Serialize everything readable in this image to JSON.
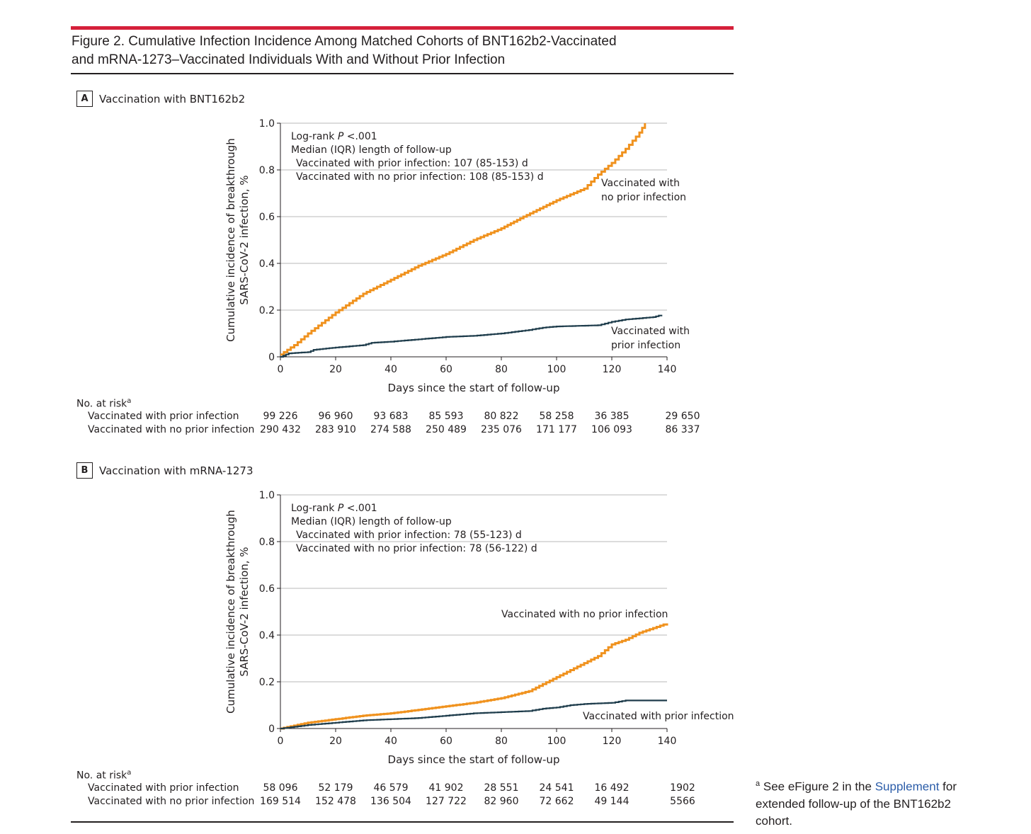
{
  "figure": {
    "title_line1": "Figure 2. Cumulative Infection Incidence Among Matched Cohorts of BNT162b2-Vaccinated",
    "title_line2": "and mRNA-1273–Vaccinated Individuals With and Without Prior Infection"
  },
  "footnote": {
    "marker": "a",
    "pre": "See eFigure 2 in the",
    "link": "Supplement",
    "post": "for extended follow-up of the BNT162b2 cohort."
  },
  "colors": {
    "no_prior": "#f0921e",
    "prior": "#1f3d4c"
  },
  "chart_data": [
    {
      "panel": "A",
      "title": "Vaccination with BNT162b2",
      "type": "line",
      "step": true,
      "xlabel": "Days since the start of follow-up",
      "ylabel_line1": "Cumulative incidence of breakthrough",
      "ylabel_line2": "SARS-CoV-2 infection, %",
      "xlim": [
        0,
        140
      ],
      "ylim": [
        0,
        1.0
      ],
      "xticks": [
        "0",
        "20",
        "40",
        "60",
        "80",
        "100",
        "120",
        "140"
      ],
      "yticks": [
        "0",
        "0.2",
        "0.4",
        "0.6",
        "0.8",
        "1.0"
      ],
      "grid": true,
      "annotations": [
        "Log-rank P <.001",
        "Median (IQR) length of follow-up",
        "Vaccinated with prior infection: 107 (85-153) d",
        "Vaccinated with no prior infection: 108 (85-153) d"
      ],
      "series": [
        {
          "name": "Vaccinated with no prior infection",
          "label_lines": [
            "Vaccinated with",
            "no prior infection"
          ],
          "color": "#f0921e",
          "x": [
            0,
            5,
            10,
            20,
            30,
            40,
            50,
            60,
            70,
            80,
            88,
            100,
            110,
            115,
            120,
            125,
            130,
            132
          ],
          "y": [
            0.01,
            0.05,
            0.1,
            0.19,
            0.27,
            0.33,
            0.39,
            0.44,
            0.5,
            0.55,
            0.6,
            0.67,
            0.72,
            0.78,
            0.83,
            0.89,
            0.96,
            1.0
          ]
        },
        {
          "name": "Vaccinated with prior infection",
          "label_lines": [
            "Vaccinated with",
            "prior infection"
          ],
          "color": "#1f3d4c",
          "x": [
            0,
            3,
            10,
            12,
            20,
            30,
            33,
            40,
            50,
            60,
            70,
            80,
            90,
            95,
            100,
            115,
            120,
            125,
            135,
            138
          ],
          "y": [
            0,
            0.015,
            0.02,
            0.03,
            0.04,
            0.05,
            0.06,
            0.065,
            0.075,
            0.085,
            0.09,
            0.1,
            0.115,
            0.125,
            0.13,
            0.135,
            0.15,
            0.16,
            0.17,
            0.18
          ]
        }
      ],
      "risk_table": {
        "header": "No. at risk",
        "header_sup": "a",
        "rows": [
          {
            "label": "Vaccinated with prior infection",
            "values": [
              "99 226",
              "96 960",
              "93 683",
              "85 593",
              "80 822",
              "58 258",
              "36 385",
              "29 650"
            ]
          },
          {
            "label": "Vaccinated with no prior infection",
            "values": [
              "290 432",
              "283 910",
              "274 588",
              "250 489",
              "235 076",
              "171 177",
              "106 093",
              "86 337"
            ]
          }
        ]
      }
    },
    {
      "panel": "B",
      "title": "Vaccination with mRNA-1273",
      "type": "line",
      "step": true,
      "xlabel": "Days since the start of follow-up",
      "ylabel_line1": "Cumulative incidence of breakthrough",
      "ylabel_line2": "SARS-CoV-2 infection, %",
      "xlim": [
        0,
        140
      ],
      "ylim": [
        0,
        1.0
      ],
      "xticks": [
        "0",
        "20",
        "40",
        "60",
        "80",
        "100",
        "120",
        "140"
      ],
      "yticks": [
        "0",
        "0.2",
        "0.4",
        "0.6",
        "0.8",
        "1.0"
      ],
      "grid": true,
      "annotations": [
        "Log-rank P <.001",
        "Median (IQR) length of follow-up",
        "Vaccinated with prior infection: 78 (55-123) d",
        "Vaccinated with no prior infection: 78 (56-122) d"
      ],
      "series": [
        {
          "name": "Vaccinated with no prior infection",
          "label_lines": [
            "Vaccinated with no prior infection"
          ],
          "color": "#f0921e",
          "x": [
            0,
            10,
            20,
            30,
            40,
            50,
            60,
            70,
            80,
            90,
            95,
            100,
            105,
            110,
            115,
            120,
            125,
            130,
            135,
            140
          ],
          "y": [
            0,
            0.025,
            0.04,
            0.055,
            0.065,
            0.08,
            0.095,
            0.11,
            0.13,
            0.16,
            0.19,
            0.22,
            0.25,
            0.28,
            0.31,
            0.36,
            0.38,
            0.41,
            0.43,
            0.45
          ]
        },
        {
          "name": "Vaccinated with prior infection",
          "label_lines": [
            "Vaccinated with prior infection"
          ],
          "color": "#1f3d4c",
          "x": [
            0,
            10,
            20,
            30,
            40,
            50,
            60,
            70,
            80,
            90,
            95,
            100,
            105,
            110,
            120,
            125,
            140
          ],
          "y": [
            0,
            0.015,
            0.025,
            0.035,
            0.04,
            0.045,
            0.055,
            0.065,
            0.07,
            0.075,
            0.085,
            0.09,
            0.1,
            0.105,
            0.11,
            0.12,
            0.12
          ]
        }
      ],
      "risk_table": {
        "header": "No. at risk",
        "header_sup": "a",
        "rows": [
          {
            "label": "Vaccinated with prior infection",
            "values": [
              "58 096",
              "52 179",
              "46 579",
              "41 902",
              "28 551",
              "24 541",
              "16 492",
              "1902"
            ]
          },
          {
            "label": "Vaccinated with no prior infection",
            "values": [
              "169 514",
              "152 478",
              "136 504",
              "127 722",
              "82 960",
              "72 662",
              "49 144",
              "5566"
            ]
          }
        ]
      }
    }
  ]
}
